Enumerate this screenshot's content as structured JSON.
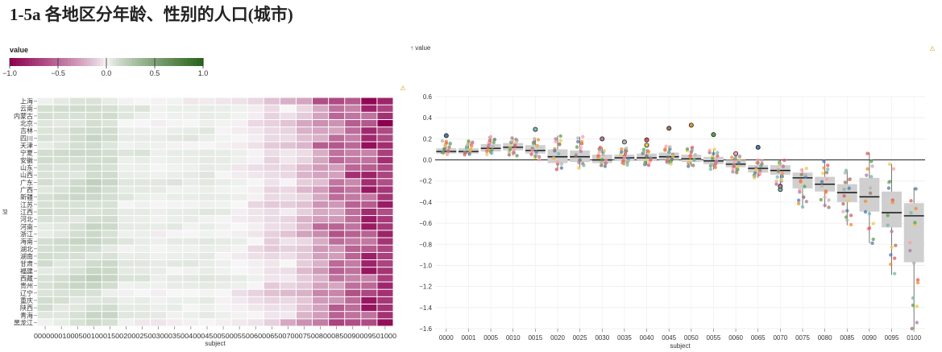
{
  "title": "1-5a 各地区分年龄、性别的人口(城市)",
  "warning_symbol": "⚠",
  "chart_data": [
    {
      "type": "heatmap",
      "legend": {
        "title": "value",
        "ticks": [
          "−1.0",
          "−0.5",
          "0.0",
          "0.5",
          "1.0"
        ],
        "domain": [
          -1,
          1
        ]
      },
      "colors": {
        "negative": "#8e0152",
        "neutral": "#f7f7f7",
        "positive": "#276419"
      },
      "xlabel": "subject",
      "ylabel": "id",
      "x": [
        "0000",
        "0001",
        "0005",
        "0010",
        "0015",
        "0020",
        "0025",
        "0030",
        "0035",
        "0040",
        "0045",
        "0050",
        "0055",
        "0060",
        "0065",
        "0070",
        "0075",
        "0080",
        "0085",
        "0090",
        "0095",
        "0100"
      ],
      "x_tick_text": "00000001000500100015002000250030003500400045005000550060006500700075008000850090009501000",
      "y": [
        "上海",
        "云南",
        "内蒙古",
        "北京",
        "吉林",
        "四川",
        "天津",
        "宁夏",
        "安徽",
        "山东",
        "山西",
        "广东",
        "广西",
        "新疆",
        "江苏",
        "江西",
        "河北",
        "河南",
        "浙江",
        "海南",
        "湖北",
        "湖南",
        "甘肃",
        "福建",
        "西藏",
        "贵州",
        "辽宁",
        "重庆",
        "陕西",
        "青海",
        "黑龙江"
      ],
      "base_profile": [
        0.08,
        0.08,
        0.1,
        0.12,
        0.1,
        0.03,
        0.03,
        0.01,
        0.02,
        0.02,
        0.03,
        0.01,
        -0.01,
        -0.04,
        -0.09,
        -0.1,
        -0.18,
        -0.22,
        -0.31,
        -0.36,
        -0.5,
        -0.53
      ],
      "row_offsets": [
        -0.06,
        0.04,
        0.02,
        -0.03,
        0.01,
        0.03,
        -0.02,
        0.05,
        0.03,
        0.0,
        0.01,
        0.06,
        0.02,
        0.04,
        -0.01,
        0.03,
        0.0,
        0.02,
        -0.02,
        0.05,
        0.0,
        0.01,
        0.04,
        0.02,
        0.07,
        0.03,
        -0.04,
        0.0,
        0.01,
        0.03,
        -0.05
      ]
    },
    {
      "type": "box",
      "y_axis_label": "↑ value",
      "xlabel": "subject",
      "ylim": [
        -1.6,
        0.6
      ],
      "y_ticks": [
        "−1.6",
        "−1.4",
        "−1.2",
        "−1.0",
        "−0.8",
        "−0.6",
        "−0.4",
        "−0.2",
        "0.0",
        "0.2",
        "0.4",
        "0.6"
      ],
      "categories": [
        "0000",
        "0001",
        "0005",
        "0010",
        "0015",
        "0020",
        "0025",
        "0030",
        "0035",
        "0040",
        "0045",
        "0050",
        "0055",
        "0060",
        "0065",
        "0070",
        "0075",
        "0080",
        "0085",
        "0090",
        "0095",
        "0100"
      ],
      "boxes": [
        {
          "q1": 0.06,
          "median": 0.08,
          "q3": 0.11,
          "min": 0.05,
          "max": 0.18
        },
        {
          "q1": 0.06,
          "median": 0.08,
          "q3": 0.11,
          "min": 0.05,
          "max": 0.18
        },
        {
          "q1": 0.08,
          "median": 0.11,
          "q3": 0.15,
          "min": 0.05,
          "max": 0.22
        },
        {
          "q1": 0.09,
          "median": 0.12,
          "q3": 0.16,
          "min": 0.04,
          "max": 0.21
        },
        {
          "q1": 0.06,
          "median": 0.09,
          "q3": 0.14,
          "min": 0.0,
          "max": 0.2
        },
        {
          "q1": -0.03,
          "median": 0.03,
          "q3": 0.1,
          "min": -0.09,
          "max": 0.23
        },
        {
          "q1": -0.02,
          "median": 0.03,
          "q3": 0.09,
          "min": -0.08,
          "max": 0.22
        },
        {
          "q1": -0.03,
          "median": 0.0,
          "q3": 0.05,
          "min": -0.06,
          "max": 0.12
        },
        {
          "q1": -0.01,
          "median": 0.02,
          "q3": 0.05,
          "min": -0.05,
          "max": 0.11
        },
        {
          "q1": -0.01,
          "median": 0.02,
          "q3": 0.06,
          "min": -0.05,
          "max": 0.1
        },
        {
          "q1": 0.0,
          "median": 0.03,
          "q3": 0.07,
          "min": -0.04,
          "max": 0.13
        },
        {
          "q1": -0.02,
          "median": 0.01,
          "q3": 0.05,
          "min": -0.06,
          "max": 0.12
        },
        {
          "q1": -0.04,
          "median": -0.01,
          "q3": 0.03,
          "min": -0.09,
          "max": 0.1
        },
        {
          "q1": -0.07,
          "median": -0.04,
          "q3": 0.0,
          "min": -0.12,
          "max": 0.05
        },
        {
          "q1": -0.12,
          "median": -0.08,
          "q3": -0.05,
          "min": -0.17,
          "max": 0.0
        },
        {
          "q1": -0.14,
          "median": -0.1,
          "q3": -0.05,
          "min": -0.24,
          "max": 0.0
        },
        {
          "q1": -0.27,
          "median": -0.17,
          "q3": -0.12,
          "min": -0.45,
          "max": -0.08
        },
        {
          "q1": -0.3,
          "median": -0.23,
          "q3": -0.16,
          "min": -0.45,
          "max": -0.01
        },
        {
          "q1": -0.4,
          "median": -0.31,
          "q3": -0.23,
          "min": -0.62,
          "max": -0.1
        },
        {
          "q1": -0.49,
          "median": -0.35,
          "q3": -0.17,
          "min": -0.79,
          "max": 0.07
        },
        {
          "q1": -0.64,
          "median": -0.5,
          "q3": -0.3,
          "min": -1.09,
          "max": -0.04
        },
        {
          "q1": -0.97,
          "median": -0.53,
          "q3": -0.41,
          "min": -1.6,
          "max": -0.26
        }
      ],
      "outliers": [
        {
          "cat": "0000",
          "value": 0.23
        },
        {
          "cat": "0015",
          "value": 0.29
        },
        {
          "cat": "0030",
          "value": 0.2
        },
        {
          "cat": "0035",
          "value": 0.17
        },
        {
          "cat": "0040",
          "value": 0.19
        },
        {
          "cat": "0040",
          "value": 0.14
        },
        {
          "cat": "0045",
          "value": 0.3
        },
        {
          "cat": "0050",
          "value": 0.33
        },
        {
          "cat": "0055",
          "value": 0.24
        },
        {
          "cat": "0060",
          "value": 0.06
        },
        {
          "cat": "0065",
          "value": 0.12
        },
        {
          "cat": "0070",
          "value": -0.28
        },
        {
          "cat": "0070",
          "value": -0.25
        }
      ],
      "point_colors": [
        "#4e79a7",
        "#f28e2b",
        "#e15759",
        "#76b7b2",
        "#59a14f",
        "#edc948",
        "#b07aa1",
        "#ff9da7",
        "#9c755f",
        "#bab0ac"
      ]
    }
  ]
}
